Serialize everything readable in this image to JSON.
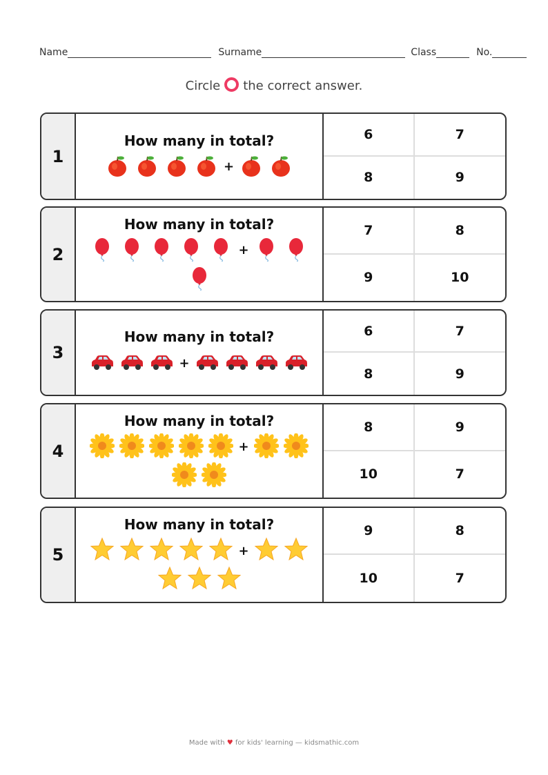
{
  "header": {
    "name": "Name",
    "surname": "Surname",
    "class": "Class",
    "no": "No."
  },
  "instruction": {
    "before": "Circle",
    "after": "the correct answer.",
    "circle_color": "#ee3a63"
  },
  "questions": [
    {
      "number": "1",
      "title": "How many in total?",
      "icon": "apple",
      "left": 4,
      "right": 2,
      "answers": [
        "6",
        "7",
        "8",
        "9"
      ]
    },
    {
      "number": "2",
      "title": "How many in total?",
      "icon": "balloon",
      "left": 5,
      "right": 3,
      "answers": [
        "7",
        "8",
        "9",
        "10"
      ]
    },
    {
      "number": "3",
      "title": "How many in total?",
      "icon": "car",
      "left": 3,
      "right": 4,
      "answers": [
        "6",
        "7",
        "8",
        "9"
      ]
    },
    {
      "number": "4",
      "title": "How many in total?",
      "icon": "flower",
      "left": 5,
      "right": 4,
      "answers": [
        "8",
        "9",
        "10",
        "7"
      ]
    },
    {
      "number": "5",
      "title": "How many in total?",
      "icon": "star",
      "left": 5,
      "right": 5,
      "answers": [
        "9",
        "8",
        "10",
        "7"
      ]
    }
  ],
  "plus": "+",
  "footer": {
    "before": "Made with",
    "heart": "♥",
    "after": "for kids' learning — kidsmathic.com"
  }
}
